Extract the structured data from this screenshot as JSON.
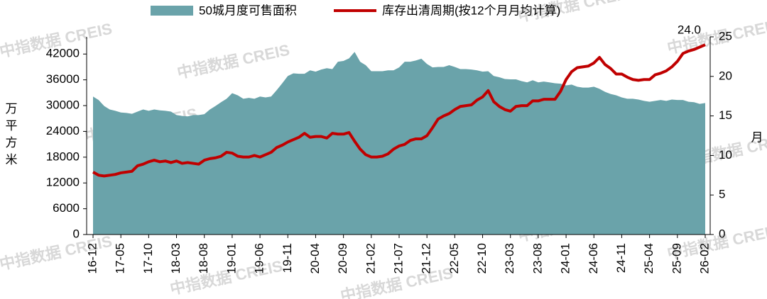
{
  "chart_data": {
    "type": "area-line",
    "watermark": "中指数据 CREIS",
    "y_label": "万平方米",
    "y2_label": "月",
    "categories": [
      "16-12",
      null,
      null,
      null,
      null,
      "17-05",
      null,
      null,
      null,
      null,
      "17-10",
      null,
      null,
      null,
      null,
      "18-03",
      null,
      null,
      null,
      null,
      "18-08",
      null,
      null,
      null,
      null,
      "19-01",
      null,
      null,
      null,
      null,
      "19-06",
      null,
      null,
      null,
      null,
      "19-11",
      null,
      null,
      null,
      null,
      "20-04",
      null,
      null,
      null,
      null,
      "20-09",
      null,
      null,
      null,
      null,
      "21-02",
      null,
      null,
      null,
      null,
      "21-07",
      null,
      null,
      null,
      null,
      "21-12",
      null,
      null,
      null,
      null,
      "22-05",
      null,
      null,
      null,
      null,
      "22-10",
      null,
      null,
      null,
      null,
      "23-03",
      null,
      null,
      null,
      null,
      "23-08",
      null,
      null,
      null,
      null,
      "24-01",
      null,
      null,
      null,
      null,
      "24-06",
      null,
      null,
      null,
      null,
      "24-11",
      null,
      null,
      null,
      null,
      "25-04",
      null,
      null,
      null,
      null,
      "25-09",
      null,
      null,
      null,
      null,
      "26-02"
    ],
    "series": [
      {
        "name": "50城月度可售面积",
        "kind": "area",
        "color": "#6aa3aa",
        "axis": "y",
        "values": [
          32100,
          31300,
          29900,
          29100,
          28800,
          28400,
          28300,
          28100,
          28600,
          29100,
          28800,
          29100,
          28900,
          28800,
          28600,
          27800,
          27600,
          27500,
          27800,
          27800,
          28000,
          29100,
          29900,
          30800,
          31600,
          32900,
          32400,
          31600,
          31800,
          31600,
          32100,
          31900,
          32100,
          33600,
          35200,
          36900,
          37500,
          37400,
          37400,
          38200,
          37900,
          38400,
          38700,
          38500,
          40200,
          40400,
          41000,
          42500,
          40200,
          39400,
          38000,
          38000,
          38000,
          38200,
          38200,
          38900,
          40200,
          40200,
          40500,
          40900,
          39700,
          38900,
          39000,
          39000,
          39400,
          39000,
          38500,
          38500,
          38400,
          38200,
          37900,
          38000,
          36900,
          36600,
          36200,
          36100,
          36100,
          35700,
          35400,
          35900,
          35400,
          35600,
          35400,
          35200,
          35100,
          34700,
          34900,
          34400,
          34200,
          34200,
          34400,
          33900,
          33200,
          32700,
          32400,
          31900,
          31600,
          31600,
          31400,
          31100,
          30900,
          31100,
          31300,
          31100,
          31400,
          31300,
          31300,
          30900,
          30800,
          30400,
          30600
        ]
      },
      {
        "name": "库存出清周期(按12个月月均计算)",
        "kind": "line",
        "color": "#c00000",
        "axis": "y2",
        "values": [
          7.9,
          7.5,
          7.4,
          7.5,
          7.6,
          7.8,
          7.9,
          8.0,
          8.7,
          8.9,
          9.2,
          9.4,
          9.2,
          9.3,
          9.1,
          9.3,
          9.0,
          9.1,
          9.0,
          8.9,
          9.4,
          9.6,
          9.7,
          9.9,
          10.4,
          10.3,
          9.9,
          9.8,
          9.8,
          10.0,
          9.8,
          10.1,
          10.4,
          11.0,
          11.3,
          11.7,
          12.0,
          12.3,
          12.8,
          12.3,
          12.4,
          12.4,
          12.2,
          12.8,
          12.7,
          12.7,
          12.9,
          11.8,
          10.8,
          10.1,
          9.8,
          9.8,
          9.9,
          10.2,
          10.8,
          11.2,
          11.4,
          11.9,
          12.1,
          12.1,
          12.5,
          13.5,
          14.6,
          15.0,
          15.3,
          15.8,
          16.2,
          16.3,
          16.4,
          17.0,
          17.4,
          18.2,
          16.8,
          16.2,
          15.8,
          15.6,
          16.2,
          16.3,
          16.3,
          16.9,
          16.9,
          17.1,
          17.1,
          17.1,
          18.1,
          19.6,
          20.6,
          21.1,
          21.2,
          21.3,
          21.7,
          22.4,
          21.5,
          21.0,
          20.3,
          20.3,
          19.9,
          19.6,
          19.5,
          19.6,
          19.6,
          20.2,
          20.4,
          20.7,
          21.2,
          21.9,
          22.9,
          23.2,
          23.4,
          23.7,
          24
        ],
        "value_labels": [
          null,
          null,
          null,
          null,
          null,
          null,
          null,
          null,
          null,
          null,
          null,
          null,
          null,
          null,
          null,
          null,
          null,
          null,
          null,
          null,
          null,
          null,
          null,
          null,
          null,
          null,
          null,
          null,
          null,
          null,
          null,
          null,
          null,
          null,
          null,
          null,
          null,
          null,
          null,
          null,
          null,
          null,
          null,
          null,
          null,
          null,
          null,
          null,
          null,
          null,
          null,
          null,
          null,
          null,
          null,
          null,
          null,
          null,
          null,
          null,
          null,
          null,
          null,
          null,
          null,
          null,
          null,
          null,
          null,
          null,
          null,
          null,
          null,
          null,
          null,
          null,
          null,
          null,
          null,
          null,
          null,
          null,
          null,
          null,
          null,
          null,
          null,
          null,
          null,
          null,
          null,
          null,
          null,
          null,
          null,
          null,
          null,
          null,
          null,
          null,
          null,
          null,
          null,
          null,
          null,
          null,
          null,
          null,
          null,
          null,
          "24.0"
        ]
      }
    ],
    "ylim": [
      0,
      46000
    ],
    "yticks": [
      0,
      6000,
      12000,
      18000,
      24000,
      30000,
      36000,
      42000
    ],
    "y2lim": [
      0,
      25
    ],
    "y2ticks": [
      0,
      5,
      10,
      15,
      20,
      25
    ],
    "grid": false
  }
}
